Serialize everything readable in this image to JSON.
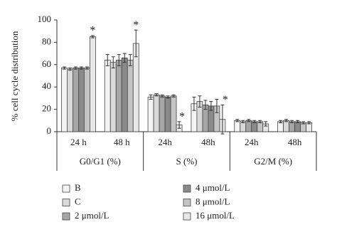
{
  "chart_data": {
    "type": "bar",
    "y_label": "% cell cycle distribution",
    "categories": [
      "24 h",
      "48 h",
      "24h",
      "48h",
      "24h",
      "48h"
    ],
    "group_labels": [
      "G0/G1 (%)",
      "S (%)",
      "G2/M (%)"
    ],
    "series": [
      {
        "name": "B",
        "color": "#f4f4f4",
        "values": [
          57,
          64,
          31,
          25,
          10,
          9
        ],
        "errors": [
          1,
          5,
          2,
          6,
          1,
          1
        ]
      },
      {
        "name": "C",
        "color": "#d9d9d9",
        "values": [
          56,
          62,
          33,
          27,
          9,
          10
        ],
        "errors": [
          1,
          5,
          1,
          5,
          1,
          1
        ]
      },
      {
        "name": "2 μmol/L",
        "color": "#a6a6a6",
        "values": [
          57,
          64,
          32,
          24,
          10,
          9
        ],
        "errors": [
          1,
          5,
          1,
          4,
          1,
          1
        ]
      },
      {
        "name": "4 μmol/L",
        "color": "#8a8a8a",
        "values": [
          57,
          66,
          31,
          23,
          9,
          9
        ],
        "errors": [
          1,
          4,
          1,
          4,
          1,
          1
        ]
      },
      {
        "name": "8 μmol/L",
        "color": "#c4c4c4",
        "values": [
          57,
          64,
          32,
          23,
          9,
          8
        ],
        "errors": [
          1,
          5,
          1,
          6,
          1,
          1
        ]
      },
      {
        "name": "16 μmol/L",
        "color": "#e8e8e8",
        "values": [
          85,
          79,
          6,
          11,
          7,
          8
        ],
        "errors": [
          1,
          12,
          3,
          13,
          2,
          1
        ]
      }
    ],
    "annotations": [
      {
        "text": "*",
        "series": 5,
        "category": 0
      },
      {
        "text": "*",
        "series": 5,
        "category": 1
      },
      {
        "text": "*",
        "series": 5,
        "category": 2
      },
      {
        "text": "*",
        "series": 5,
        "category": 3
      }
    ],
    "ylim": [
      0,
      100
    ],
    "yticks": [
      0,
      20,
      40,
      60,
      80,
      100
    ],
    "grid": false
  }
}
